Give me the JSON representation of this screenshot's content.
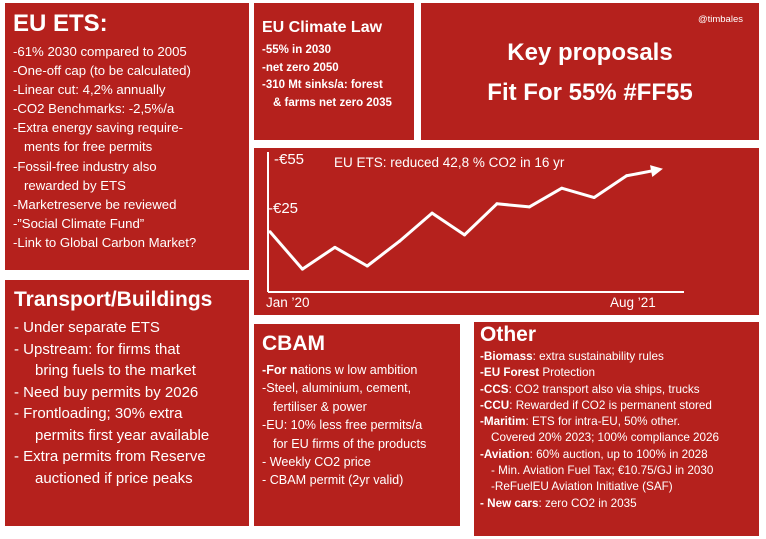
{
  "ets": {
    "title": "EU ETS:",
    "lines": [
      "-61% 2030 compared to 2005",
      "-One-off cap (to be calculated)",
      "-Linear cut:  4,2% annually",
      "-CO2 Benchmarks: -2,5%/a",
      "-Extra energy saving require-",
      "ments for free permits",
      "-Fossil-free industry also",
      "rewarded by ETS",
      "-Marketreserve be reviewed",
      "-”Social Climate Fund”",
      "-Link to Global Carbon Market?"
    ]
  },
  "law": {
    "title": "EU Climate Law",
    "lines": [
      "-55% in 2030",
      "-net zero 2050",
      "-310 Mt sinks/a: forest",
      "& farms net zero 2035"
    ]
  },
  "key": {
    "handle": "@timbales",
    "title_line1": "Key proposals",
    "title_line2": "Fit For 55% #FF55"
  },
  "chart_data": {
    "type": "line",
    "title": "EU ETS: reduced 42,8 % CO2 in 16 yr",
    "x_labels": [
      "Jan ’20",
      "Aug ’21"
    ],
    "y_labels": [
      "-€55",
      "-€25"
    ],
    "x": [
      "Jan '20",
      "Apr '20",
      "Jun '20",
      "Aug '20",
      "Oct '20",
      "Dec '20",
      "Jan '21",
      "Mar '21",
      "Apr '21",
      "May '21",
      "Jun '21",
      "Jul '21",
      "Aug '21"
    ],
    "y": [
      35,
      23,
      30,
      24,
      32,
      41,
      34,
      44,
      43,
      49,
      46,
      53,
      55
    ],
    "ylim": [
      15,
      60
    ],
    "line_color": "#ffffff",
    "arrow_end": true
  },
  "transport": {
    "title": "Transport/Buildings",
    "lines": [
      "- Under separate ETS",
      "- Upstream: for firms that",
      "bring fuels to the market",
      "- Need buy permits by 2026",
      "- Frontloading; 30% extra",
      "permits first year available",
      "- Extra permits from Reserve",
      "auctioned if price peaks"
    ]
  },
  "cbam": {
    "title": "CBAM",
    "first_bold": "-For n",
    "first_rest": "ations w low ambition",
    "lines": [
      "-Steel, aluminium, cement,",
      "fertiliser & power",
      "-EU: 10% less free permits/a",
      "for EU firms of the products",
      "- Weekly CO2 price",
      "- CBAM permit (2yr valid)"
    ]
  },
  "other": {
    "title": "Other",
    "items": [
      {
        "bold": "-Biomass",
        "rest": ": extra sustainability rules"
      },
      {
        "bold": "-EU Forest",
        "rest": " Protection"
      },
      {
        "bold": "-CCS",
        "rest": ": CO2 transport also via ships, trucks"
      },
      {
        "bold": "-CCU",
        "rest": ": Rewarded  if CO2 is permanent stored"
      },
      {
        "bold": "-Maritim",
        "rest": ": ETS for intra-EU, 50% other."
      },
      {
        "bold": "",
        "rest": "Covered 20% 2023; 100% compliance 2026"
      },
      {
        "bold": "-Aviation",
        "rest": ": 60% auction, up to  100% in 2028"
      },
      {
        "bold": "",
        "rest": "- Min. Aviation Fuel Tax; €10.75/GJ in 2030"
      },
      {
        "bold": "",
        "rest": "-ReFuelEU Aviation Initiative (SAF)"
      },
      {
        "bold": "- New cars",
        "rest": ": zero CO2 in 2035"
      }
    ]
  }
}
